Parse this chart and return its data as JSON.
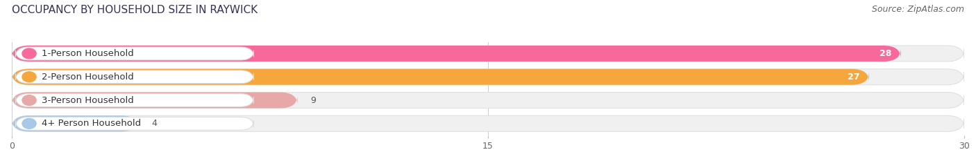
{
  "title": "OCCUPANCY BY HOUSEHOLD SIZE IN RAYWICK",
  "source": "Source: ZipAtlas.com",
  "categories": [
    "1-Person Household",
    "2-Person Household",
    "3-Person Household",
    "4+ Person Household"
  ],
  "values": [
    28,
    27,
    9,
    4
  ],
  "bar_colors": [
    "#f7699a",
    "#f5a63d",
    "#e8a8a8",
    "#a8c8e8"
  ],
  "label_colors": [
    "white",
    "white",
    "#666666",
    "#666666"
  ],
  "xlim": [
    0,
    30
  ],
  "xticks": [
    0,
    15,
    30
  ],
  "background_color": "#ffffff",
  "bar_bg_color": "#f0f0f0",
  "bar_bg_border": "#e0e0e0",
  "title_fontsize": 11,
  "source_fontsize": 9,
  "bar_label_fontsize": 9,
  "category_fontsize": 9.5,
  "figsize": [
    14.06,
    2.33
  ],
  "dpi": 100
}
